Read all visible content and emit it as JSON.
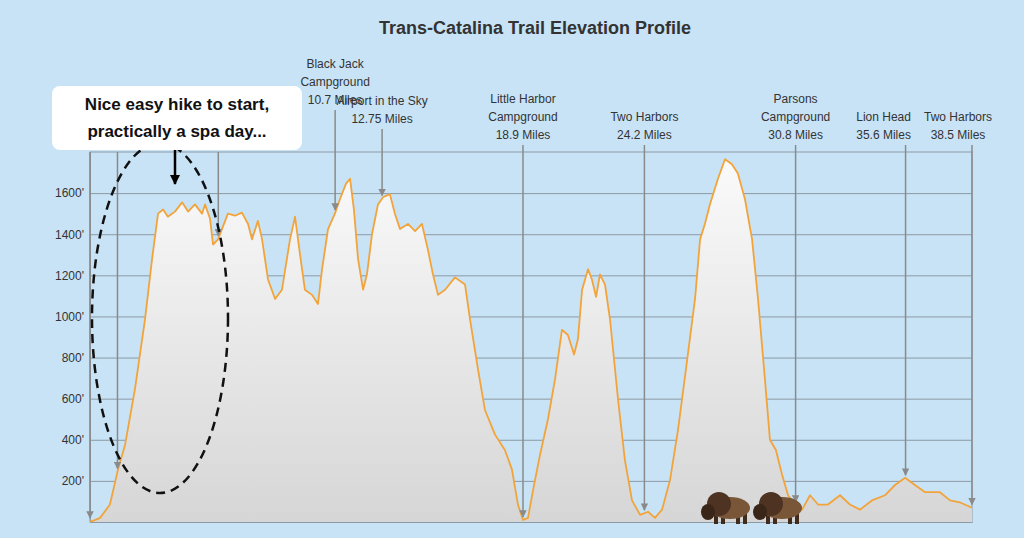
{
  "chart_data": {
    "type": "area",
    "title": "Trans-Catalina Trail Elevation Profile",
    "color": "#f2a43a",
    "grid": true,
    "tick_labels": "y",
    "xlim": [
      0,
      38.5
    ],
    "ylim": [
      0,
      1800
    ],
    "yticks": [
      {
        "value": 200,
        "label": "200'"
      },
      {
        "value": 400,
        "label": "400'"
      },
      {
        "value": 600,
        "label": "600'"
      },
      {
        "value": 800,
        "label": "800'"
      },
      {
        "value": 1000,
        "label": "1000'"
      },
      {
        "value": 1200,
        "label": "1200'"
      },
      {
        "value": 1400,
        "label": "1400'"
      },
      {
        "value": 1600,
        "label": "1600'"
      }
    ],
    "x": [
      0,
      0.44,
      0.87,
      1.22,
      1.53,
      1.96,
      2.4,
      2.71,
      2.97,
      3.19,
      3.4,
      3.71,
      4.02,
      4.28,
      4.58,
      4.89,
      5.02,
      5.24,
      5.37,
      5.59,
      5.76,
      6.02,
      6.33,
      6.63,
      6.9,
      7.07,
      7.33,
      7.51,
      7.77,
      8.08,
      8.38,
      8.73,
      8.95,
      9.17,
      9.38,
      9.69,
      9.95,
      10.13,
      10.39,
      10.69,
      10.91,
      11.17,
      11.35,
      11.52,
      11.7,
      11.92,
      12.09,
      12.31,
      12.57,
      12.79,
      13.09,
      13.31,
      13.53,
      13.88,
      14.19,
      14.49,
      14.75,
      14.97,
      15.19,
      15.5,
      15.93,
      16.37,
      16.59,
      16.94,
      17.24,
      17.68,
      18.11,
      18.42,
      18.68,
      18.9,
      19.12,
      19.34,
      19.64,
      19.99,
      20.3,
      20.6,
      20.86,
      21.13,
      21.3,
      21.48,
      21.74,
      21.91,
      22.09,
      22.26,
      22.48,
      22.7,
      23.05,
      23.35,
      23.66,
      24.01,
      24.36,
      24.66,
      24.97,
      25.32,
      25.67,
      26.01,
      26.41,
      26.63,
      26.84,
      27.06,
      27.41,
      27.72,
      28.02,
      28.28,
      28.59,
      28.9,
      29.16,
      29.46,
      29.68,
      29.94,
      30.21,
      30.47,
      30.77,
      31.08,
      31.43,
      31.78,
      32.21,
      32.74,
      33.17,
      33.61,
      34.13,
      34.7,
      35.14,
      35.58,
      36.01,
      36.45,
      37.1,
      37.54,
      37.98,
      38.5
    ],
    "values": [
      0,
      20,
      85,
      255,
      375,
      645,
      985,
      1280,
      1500,
      1520,
      1485,
      1510,
      1555,
      1510,
      1545,
      1500,
      1545,
      1475,
      1350,
      1375,
      1425,
      1500,
      1490,
      1505,
      1450,
      1375,
      1465,
      1375,
      1180,
      1085,
      1130,
      1375,
      1485,
      1300,
      1130,
      1105,
      1060,
      1230,
      1425,
      1500,
      1570,
      1645,
      1670,
      1520,
      1280,
      1130,
      1205,
      1400,
      1545,
      1580,
      1595,
      1500,
      1425,
      1450,
      1415,
      1450,
      1325,
      1205,
      1105,
      1130,
      1190,
      1155,
      985,
      740,
      545,
      425,
      350,
      255,
      85,
      10,
      20,
      155,
      325,
      500,
      695,
      935,
      910,
      815,
      890,
      1130,
      1230,
      1180,
      1095,
      1205,
      1155,
      985,
      595,
      300,
      105,
      35,
      50,
      20,
      60,
      205,
      450,
      740,
      1085,
      1375,
      1450,
      1545,
      1670,
      1765,
      1740,
      1695,
      1570,
      1375,
      1085,
      695,
      400,
      350,
      230,
      130,
      85,
      60,
      130,
      85,
      85,
      130,
      85,
      60,
      105,
      130,
      180,
      215,
      180,
      145,
      145,
      105,
      95,
      70
    ],
    "markers": [
      {
        "x": 0,
        "label": null
      },
      {
        "x": 1.2,
        "label": null
      },
      {
        "x": 5.6,
        "label": null
      },
      {
        "x": 10.7,
        "label": [
          "Black Jack",
          "Campground",
          "10.7 Miles"
        ]
      },
      {
        "x": 12.75,
        "label": [
          "Airport in the Sky",
          "12.75 Miles"
        ]
      },
      {
        "x": 18.9,
        "label": [
          "Little Harbor",
          "Campground",
          "18.9 Miles"
        ]
      },
      {
        "x": 24.2,
        "label": [
          "Two Harbors",
          "24.2 Miles"
        ]
      },
      {
        "x": 30.8,
        "label": [
          "Parsons",
          "Campground",
          "30.8 Miles"
        ]
      },
      {
        "x": 35.6,
        "label": [
          "Lion Head",
          "35.6 Miles"
        ]
      },
      {
        "x": 38.5,
        "label": [
          "Two Harbors",
          "38.5 Miles"
        ]
      }
    ],
    "annotation": [
      "Nice easy hike to start,",
      "practically a spa day..."
    ]
  }
}
